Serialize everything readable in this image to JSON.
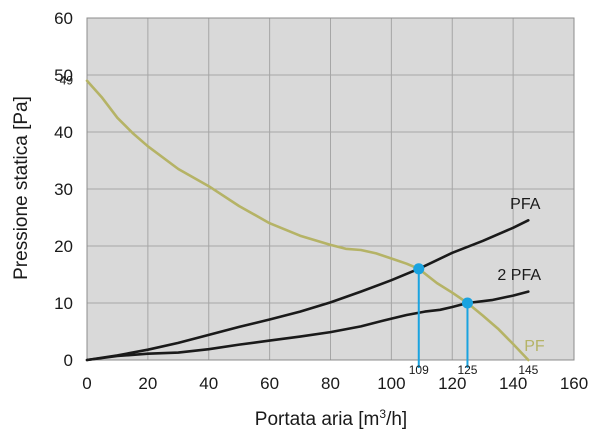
{
  "chart_data": {
    "type": "line",
    "title": "",
    "xlabel": "Portata aria [m",
    "xlabel_sup": "3",
    "xlabel_tail": "/h]",
    "ylabel": "Pressione statica [Pa]",
    "xlim": [
      0,
      160
    ],
    "ylim": [
      0,
      60
    ],
    "x_ticks": [
      0,
      20,
      40,
      60,
      80,
      100,
      120,
      140,
      160
    ],
    "y_ticks": [
      0,
      10,
      20,
      30,
      40,
      50,
      60
    ],
    "grid": true,
    "plot_background": "#d9d9d9",
    "grid_color": "#a6a6a6",
    "series": [
      {
        "name": "PFA",
        "color": "#1a1a1a",
        "points": [
          [
            0,
            0
          ],
          [
            10,
            0.8
          ],
          [
            20,
            1.8
          ],
          [
            30,
            3
          ],
          [
            40,
            4.4
          ],
          [
            50,
            5.8
          ],
          [
            60,
            7.1
          ],
          [
            70,
            8.5
          ],
          [
            80,
            10.1
          ],
          [
            90,
            12
          ],
          [
            100,
            14
          ],
          [
            109,
            16
          ],
          [
            120,
            18.8
          ],
          [
            130,
            20.9
          ],
          [
            140,
            23.2
          ],
          [
            145,
            24.5
          ]
        ]
      },
      {
        "name": "2 PFA",
        "color": "#1a1a1a",
        "points": [
          [
            0,
            0
          ],
          [
            10,
            0.7
          ],
          [
            20,
            1.1
          ],
          [
            30,
            1.3
          ],
          [
            40,
            1.9
          ],
          [
            50,
            2.7
          ],
          [
            60,
            3.4
          ],
          [
            70,
            4.1
          ],
          [
            80,
            4.9
          ],
          [
            90,
            5.9
          ],
          [
            98,
            7
          ],
          [
            105,
            7.9
          ],
          [
            111,
            8.5
          ],
          [
            116,
            8.8
          ],
          [
            120,
            9.3
          ],
          [
            125,
            10
          ],
          [
            133,
            10.5
          ],
          [
            140,
            11.3
          ],
          [
            145,
            12
          ]
        ]
      },
      {
        "name": "PF",
        "color": "#b5b366",
        "points": [
          [
            0,
            49
          ],
          [
            5,
            46
          ],
          [
            10,
            42.5
          ],
          [
            15,
            39.8
          ],
          [
            20,
            37.5
          ],
          [
            30,
            33.5
          ],
          [
            40,
            30.5
          ],
          [
            50,
            27
          ],
          [
            60,
            24
          ],
          [
            70,
            21.8
          ],
          [
            80,
            20.2
          ],
          [
            85,
            19.5
          ],
          [
            90,
            19.3
          ],
          [
            95,
            18.7
          ],
          [
            100,
            17.8
          ],
          [
            105,
            16.9
          ],
          [
            109,
            16
          ],
          [
            115,
            13.5
          ],
          [
            120,
            11.8
          ],
          [
            125,
            10
          ],
          [
            130,
            7.8
          ],
          [
            135,
            5.5
          ],
          [
            140,
            2.8
          ],
          [
            145,
            0
          ]
        ]
      }
    ],
    "series_labels": [
      {
        "text": "PFA",
        "x": 144,
        "y": 26.5,
        "color": "#1a1a1a"
      },
      {
        "text": "2 PFA",
        "x": 142,
        "y": 14,
        "color": "#1a1a1a"
      },
      {
        "text": "PF",
        "x": 147,
        "y": 1.6,
        "color": "#b5b366"
      }
    ],
    "intersections": [
      {
        "x": 109,
        "y": 16,
        "label": "109"
      },
      {
        "x": 125,
        "y": 10,
        "label": "125"
      }
    ],
    "marker_color": "#1aa3e0",
    "extra_x_labels": [
      {
        "x": 145,
        "label": "145"
      }
    ],
    "extra_y_label": {
      "y": 49,
      "label": "49"
    }
  }
}
